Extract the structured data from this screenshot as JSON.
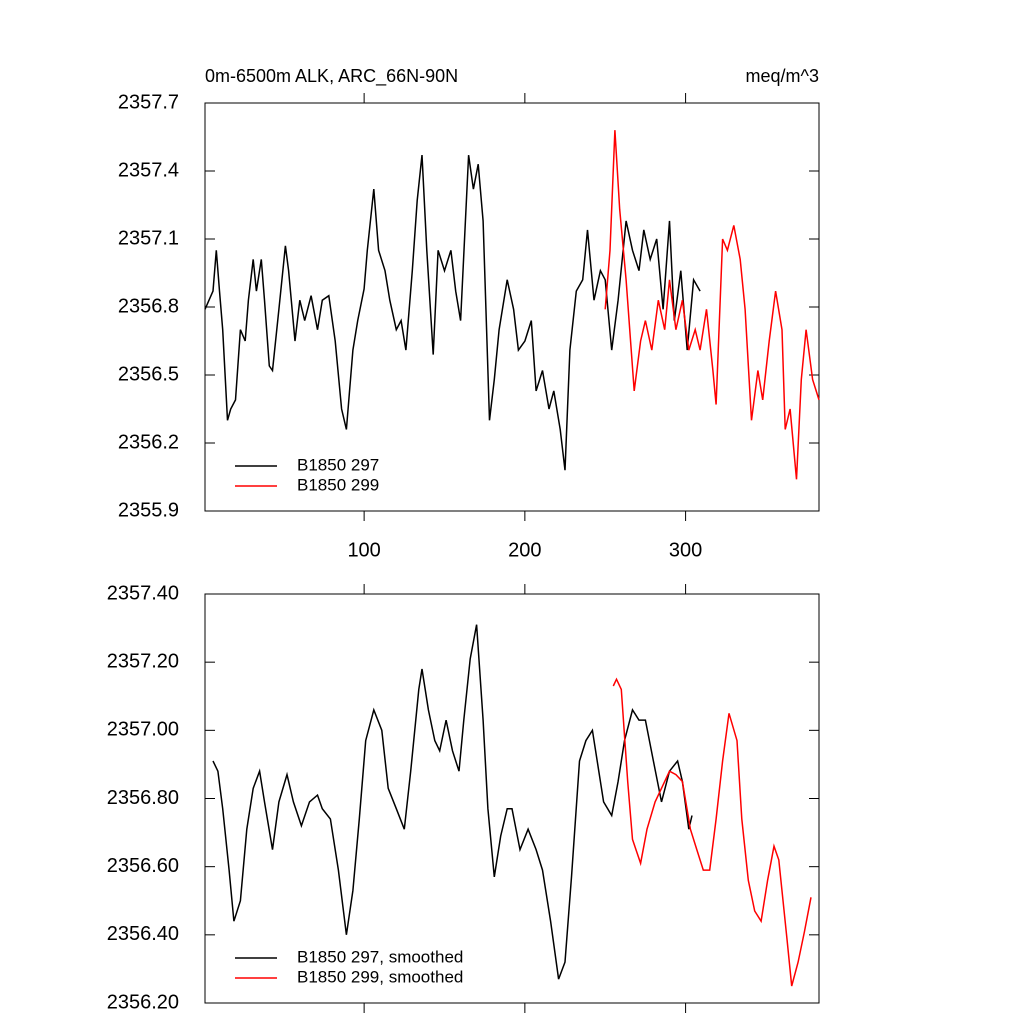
{
  "chart_data": [
    {
      "type": "line",
      "title": "0m-6500m ALK, ARC_66N-90N",
      "right_title": "meq/m^3",
      "xlim": [
        1,
        383
      ],
      "xticks": [
        100,
        200,
        300
      ],
      "show_xtick_labels": true,
      "ylim": [
        2355.9,
        2357.7
      ],
      "yticks": [
        2355.9,
        2356.2,
        2356.5,
        2356.8,
        2357.1,
        2357.4,
        2357.7
      ],
      "legend": "lower left",
      "series": [
        {
          "name": "B1850 297",
          "color": "#000000",
          "x": [
            1,
            6,
            8,
            10,
            12,
            15,
            17,
            20,
            23,
            26,
            28,
            31,
            33,
            36,
            38,
            41,
            43,
            47,
            51,
            53,
            57,
            60,
            63,
            67,
            71,
            74,
            78,
            82,
            86,
            89,
            93,
            96,
            100,
            102,
            106,
            109,
            113,
            116,
            120,
            123,
            126,
            130,
            133,
            136,
            139,
            143,
            146,
            150,
            154,
            157,
            160,
            165,
            168,
            171,
            174,
            178,
            181,
            184,
            189,
            193,
            196,
            200,
            204,
            207,
            211,
            215,
            218,
            222,
            225,
            228,
            232,
            236,
            239,
            243,
            247,
            250,
            254,
            258,
            263,
            267,
            271,
            274,
            278,
            282,
            286,
            290,
            293,
            297,
            301,
            305,
            309
          ],
          "values": [
            2356.79,
            2356.87,
            2357.05,
            2356.87,
            2356.7,
            2356.3,
            2356.35,
            2356.39,
            2356.7,
            2356.65,
            2356.83,
            2357.01,
            2356.87,
            2357.01,
            2356.83,
            2356.54,
            2356.52,
            2356.79,
            2357.07,
            2356.96,
            2356.65,
            2356.83,
            2356.74,
            2356.85,
            2356.7,
            2356.83,
            2356.85,
            2356.65,
            2356.35,
            2356.26,
            2356.61,
            2356.74,
            2356.88,
            2357.05,
            2357.32,
            2357.05,
            2356.96,
            2356.83,
            2356.7,
            2356.74,
            2356.61,
            2356.96,
            2357.27,
            2357.47,
            2357.05,
            2356.59,
            2357.05,
            2356.96,
            2357.05,
            2356.87,
            2356.74,
            2357.47,
            2357.32,
            2357.43,
            2357.18,
            2356.3,
            2356.48,
            2356.7,
            2356.92,
            2356.79,
            2356.61,
            2356.65,
            2356.74,
            2356.43,
            2356.52,
            2356.35,
            2356.43,
            2356.26,
            2356.08,
            2356.61,
            2356.87,
            2356.92,
            2357.14,
            2356.83,
            2356.96,
            2356.92,
            2356.61,
            2356.83,
            2357.18,
            2357.05,
            2356.96,
            2357.14,
            2357.01,
            2357.1,
            2356.79,
            2357.18,
            2356.74,
            2356.96,
            2356.61,
            2356.92,
            2356.87
          ]
        },
        {
          "name": "B1850 299",
          "color": "#ff0000",
          "x": [
            250,
            253,
            256,
            259,
            263,
            268,
            272,
            275,
            279,
            283,
            287,
            290,
            294,
            298,
            302,
            306,
            309,
            313,
            317,
            319,
            323,
            326,
            330,
            334,
            337,
            341,
            345,
            348,
            352,
            356,
            360,
            362,
            365,
            369,
            372,
            375,
            379,
            383
          ],
          "values": [
            2356.79,
            2357.05,
            2357.58,
            2357.23,
            2356.92,
            2356.43,
            2356.65,
            2356.74,
            2356.61,
            2356.83,
            2356.7,
            2356.92,
            2356.7,
            2356.83,
            2356.61,
            2356.7,
            2356.61,
            2356.79,
            2356.52,
            2356.37,
            2357.1,
            2357.05,
            2357.16,
            2357.01,
            2356.79,
            2356.3,
            2356.52,
            2356.39,
            2356.65,
            2356.87,
            2356.7,
            2356.26,
            2356.35,
            2356.04,
            2356.48,
            2356.7,
            2356.48,
            2356.39
          ]
        }
      ]
    },
    {
      "type": "line",
      "xlim": [
        1,
        383
      ],
      "xticks": [
        100,
        200,
        300
      ],
      "show_xtick_labels": false,
      "ylim": [
        2356.2,
        2357.4
      ],
      "yticks": [
        {
          "value": 2356.2,
          "label": "2356.20"
        },
        {
          "value": 2356.4,
          "label": "2356.40"
        },
        {
          "value": 2356.6,
          "label": "2356.60"
        },
        {
          "value": 2356.8,
          "label": "2356.80"
        },
        {
          "value": 2357.0,
          "label": "2357.00"
        },
        {
          "value": 2357.2,
          "label": "2357.20"
        },
        {
          "value": 2357.4,
          "label": "2357.40"
        }
      ],
      "legend": "lower left",
      "series": [
        {
          "name": "B1850 297, smoothed",
          "color": "#000000",
          "x": [
            6,
            9,
            12,
            16,
            19,
            23,
            27,
            31,
            35,
            38,
            43,
            47,
            52,
            56,
            61,
            66,
            71,
            74,
            79,
            84,
            89,
            93,
            97,
            101,
            106,
            111,
            115,
            120,
            125,
            129,
            134,
            136,
            140,
            144,
            147,
            151,
            155,
            159,
            162,
            166,
            170,
            174,
            177,
            181,
            185,
            189,
            192,
            197,
            202,
            207,
            211,
            216,
            221,
            225,
            229,
            234,
            238,
            242,
            246,
            249,
            254,
            258,
            262,
            267,
            271,
            275,
            280,
            285,
            290,
            295,
            298,
            302,
            304
          ],
          "values": [
            2356.91,
            2356.88,
            2356.77,
            2356.59,
            2356.44,
            2356.5,
            2356.71,
            2356.83,
            2356.88,
            2356.79,
            2356.65,
            2356.79,
            2356.87,
            2356.79,
            2356.72,
            2356.79,
            2356.81,
            2356.77,
            2356.74,
            2356.59,
            2356.4,
            2356.53,
            2356.74,
            2356.97,
            2357.06,
            2357.0,
            2356.83,
            2356.77,
            2356.71,
            2356.88,
            2357.12,
            2357.18,
            2357.06,
            2356.97,
            2356.94,
            2357.03,
            2356.94,
            2356.88,
            2357.03,
            2357.21,
            2357.31,
            2357.03,
            2356.77,
            2356.57,
            2356.69,
            2356.77,
            2356.77,
            2356.65,
            2356.71,
            2356.65,
            2356.59,
            2356.44,
            2356.27,
            2356.32,
            2356.57,
            2356.91,
            2356.97,
            2357.0,
            2356.88,
            2356.79,
            2356.75,
            2356.85,
            2356.97,
            2357.06,
            2357.03,
            2357.03,
            2356.91,
            2356.79,
            2356.88,
            2356.91,
            2356.85,
            2356.71,
            2356.75
          ]
        },
        {
          "name": "B1850 299, smoothed",
          "color": "#ff0000",
          "x": [
            255,
            257,
            260,
            264,
            267,
            272,
            276,
            281,
            285,
            290,
            294,
            298,
            303,
            307,
            311,
            315,
            319,
            323,
            327,
            332,
            335,
            339,
            343,
            347,
            351,
            355,
            358,
            363,
            366,
            370,
            374,
            378
          ],
          "values": [
            2357.13,
            2357.15,
            2357.12,
            2356.85,
            2356.68,
            2356.61,
            2356.71,
            2356.79,
            2356.83,
            2356.88,
            2356.87,
            2356.85,
            2356.71,
            2356.65,
            2356.59,
            2356.59,
            2356.74,
            2356.91,
            2357.05,
            2356.97,
            2356.74,
            2356.56,
            2356.47,
            2356.44,
            2356.56,
            2356.66,
            2356.62,
            2356.39,
            2356.25,
            2356.32,
            2356.41,
            2356.51
          ]
        }
      ]
    }
  ]
}
